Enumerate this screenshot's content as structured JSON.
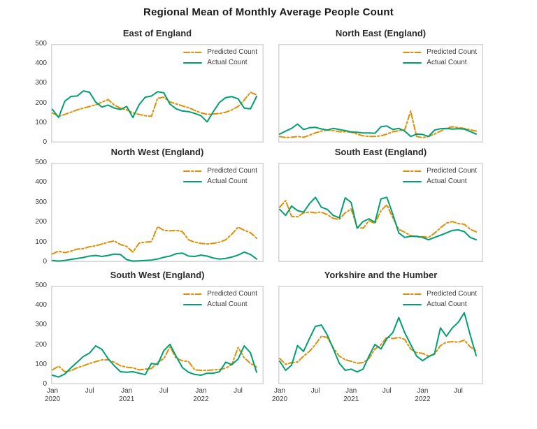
{
  "chart_data": {
    "type": "line",
    "title": "Regional Mean of Monthly Average People Count",
    "x_unit": "month",
    "x_range_start": "Jan 2020",
    "x_range_end": "Oct 2022",
    "points_per_series": 34,
    "x_tick_month_indices": [
      0,
      6,
      12,
      18,
      24,
      30
    ],
    "x_tick_labels": [
      [
        "Jan",
        "2020"
      ],
      [
        "Jul",
        ""
      ],
      [
        "Jan",
        "2021"
      ],
      [
        "Jul",
        ""
      ],
      [
        "Jan",
        "2022"
      ],
      [
        "Jul",
        ""
      ]
    ],
    "ylim": [
      0,
      500
    ],
    "y_ticks": [
      0,
      100,
      200,
      300,
      400,
      500
    ],
    "grid": false,
    "legend": {
      "position": "upper right",
      "predicted_label": "Predicted Count",
      "actual_label": "Actual Count"
    },
    "colors": {
      "predicted": "#DE8F05",
      "actual": "#029E73",
      "frame": "#d5d5d5",
      "text": "#262626"
    },
    "subplots": [
      {
        "title": "East of England",
        "predicted": [
          150,
          133,
          143,
          154,
          166,
          175,
          183,
          192,
          205,
          218,
          190,
          175,
          166,
          151,
          143,
          136,
          133,
          225,
          230,
          206,
          196,
          186,
          177,
          163,
          151,
          143,
          145,
          147,
          154,
          166,
          183,
          216,
          255,
          242
        ],
        "actual": [
          168,
          127,
          210,
          234,
          236,
          262,
          255,
          205,
          180,
          190,
          175,
          168,
          183,
          127,
          192,
          230,
          236,
          258,
          252,
          195,
          171,
          160,
          157,
          148,
          136,
          105,
          157,
          204,
          228,
          233,
          222,
          175,
          171,
          234
        ]
      },
      {
        "title": "North East (England)",
        "predicted": [
          31,
          25,
          27,
          31,
          27,
          37,
          49,
          58,
          63,
          61,
          55,
          55,
          52,
          43,
          34,
          31,
          31,
          34,
          43,
          55,
          60,
          65,
          160,
          31,
          25,
          31,
          43,
          58,
          72,
          80,
          75,
          72,
          65,
          58
        ],
        "actual": [
          43,
          58,
          72,
          94,
          66,
          75,
          77,
          69,
          63,
          72,
          66,
          61,
          54,
          52,
          49,
          49,
          47,
          80,
          84,
          66,
          72,
          58,
          31,
          43,
          41,
          31,
          63,
          70,
          72,
          68,
          70,
          68,
          56,
          43
        ]
      },
      {
        "title": "North West (England)",
        "predicted": [
          41,
          55,
          47,
          55,
          65,
          68,
          77,
          82,
          91,
          100,
          106,
          88,
          79,
          50,
          95,
          100,
          103,
          178,
          160,
          157,
          160,
          153,
          112,
          100,
          94,
          91,
          94,
          100,
          112,
          141,
          176,
          160,
          148,
          120
        ],
        "actual": [
          8,
          5,
          8,
          13,
          18,
          23,
          30,
          33,
          28,
          33,
          40,
          38,
          12,
          5,
          6,
          8,
          10,
          15,
          24,
          30,
          42,
          45,
          30,
          28,
          35,
          30,
          20,
          15,
          18,
          25,
          35,
          50,
          38,
          15
        ]
      },
      {
        "title": "South East (England)",
        "predicted": [
          276,
          310,
          230,
          228,
          248,
          252,
          248,
          252,
          238,
          220,
          215,
          248,
          267,
          176,
          170,
          208,
          194,
          259,
          288,
          223,
          165,
          150,
          133,
          126,
          128,
          124,
          145,
          172,
          196,
          204,
          194,
          190,
          165,
          152
        ],
        "actual": [
          265,
          235,
          282,
          259,
          251,
          294,
          326,
          276,
          265,
          235,
          223,
          324,
          300,
          170,
          204,
          218,
          200,
          318,
          326,
          240,
          147,
          124,
          130,
          130,
          124,
          112,
          124,
          135,
          147,
          159,
          162,
          153,
          124,
          112
        ]
      },
      {
        "title": "South West (England)",
        "predicted": [
          73,
          92,
          64,
          69,
          84,
          94,
          106,
          115,
          124,
          124,
          112,
          94,
          87,
          84,
          73,
          77,
          80,
          112,
          130,
          190,
          132,
          120,
          115,
          73,
          71,
          71,
          73,
          75,
          82,
          100,
          187,
          135,
          106,
          88
        ],
        "actual": [
          46,
          37,
          52,
          84,
          112,
          141,
          159,
          195,
          177,
          130,
          94,
          64,
          61,
          64,
          56,
          49,
          106,
          100,
          171,
          203,
          141,
          85,
          61,
          50,
          46,
          56,
          56,
          64,
          112,
          100,
          128,
          195,
          160,
          61
        ]
      },
      {
        "title": "Yorkshire and the Humber",
        "predicted": [
          131,
          101,
          110,
          113,
          143,
          167,
          202,
          244,
          238,
          185,
          143,
          125,
          117,
          107,
          110,
          131,
          179,
          200,
          240,
          232,
          238,
          228,
          179,
          161,
          157,
          143,
          152,
          196,
          214,
          216,
          214,
          224,
          190,
          170
        ],
        "actual": [
          117,
          71,
          97,
          196,
          167,
          232,
          294,
          301,
          250,
          181,
          107,
          71,
          77,
          63,
          77,
          143,
          202,
          179,
          232,
          262,
          339,
          262,
          202,
          143,
          120,
          140,
          155,
          286,
          244,
          286,
          315,
          363,
          250,
          145
        ]
      }
    ]
  }
}
